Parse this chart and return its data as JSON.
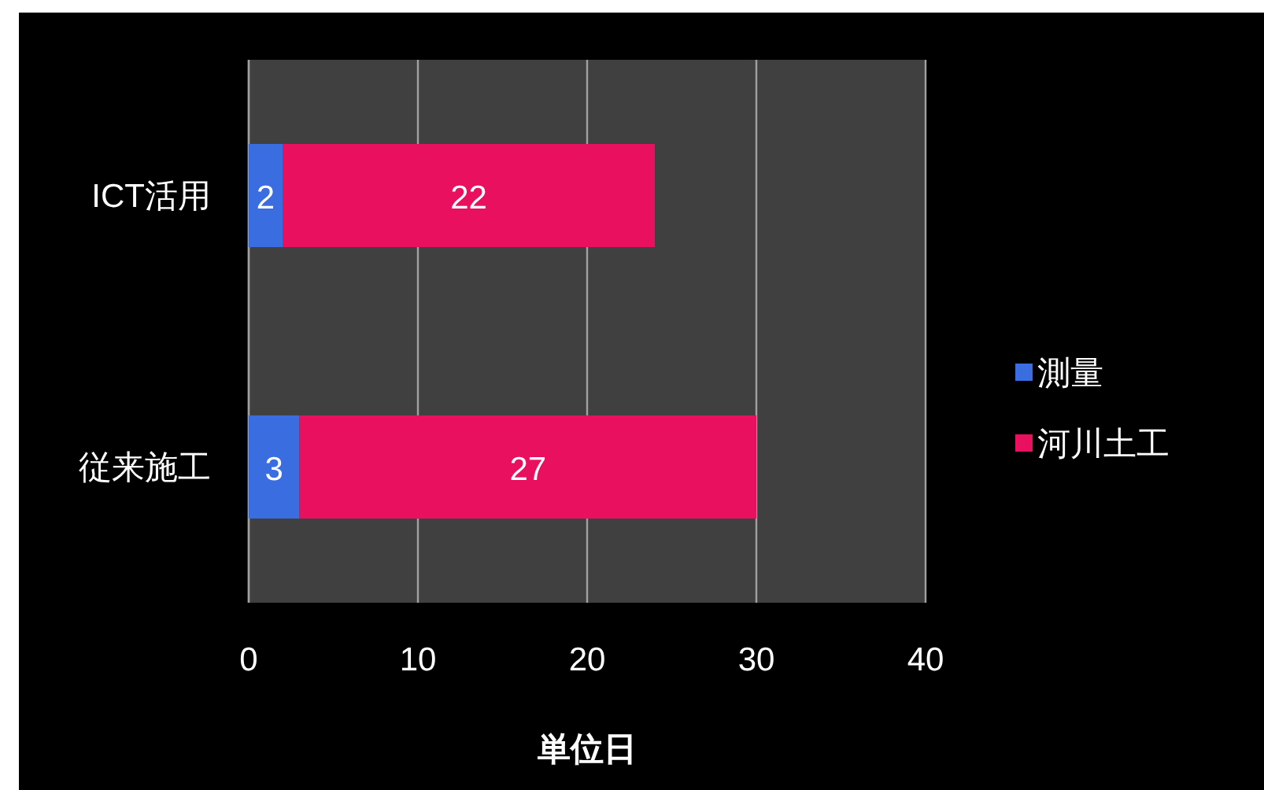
{
  "chart_data": {
    "type": "bar",
    "orientation": "horizontal",
    "stacked": true,
    "categories": [
      "ICT活用",
      "従来施工"
    ],
    "series": [
      {
        "name": "測量",
        "color": "#3a6ee0",
        "values": [
          2,
          3
        ]
      },
      {
        "name": "河川土工",
        "color": "#e8105f",
        "values": [
          22,
          27
        ]
      }
    ],
    "xlim": [
      0,
      40
    ],
    "xticks": [
      0,
      10,
      20,
      30,
      40
    ],
    "xlabel": "単位日",
    "grid": "x",
    "legend": "right",
    "data_labels": true
  }
}
